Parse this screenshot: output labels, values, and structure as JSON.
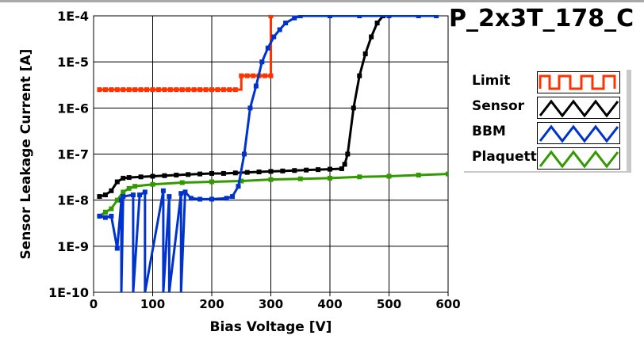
{
  "chart_data": {
    "type": "line",
    "title": "P_2x3T_178_C",
    "xlabel": "Bias Voltage [V]",
    "ylabel": "Sensor Leakage Current [A]",
    "xlim": [
      0,
      600
    ],
    "ylim": [
      1e-10,
      0.0001
    ],
    "yscale": "log",
    "grid": true,
    "legend_position": "right",
    "x_ticks": [
      "0",
      "100",
      "200",
      "300",
      "400",
      "500",
      "600"
    ],
    "y_ticks": [
      "1E-10",
      "1E-9",
      "1E-8",
      "1E-7",
      "1E-6",
      "1E-5",
      "1E-4"
    ],
    "series": [
      {
        "name": "Limit",
        "color": "#ff3300",
        "step": true,
        "x": [
          10,
          20,
          30,
          40,
          50,
          60,
          70,
          80,
          90,
          100,
          110,
          120,
          130,
          140,
          150,
          160,
          170,
          180,
          190,
          200,
          210,
          220,
          230,
          240,
          250,
          260,
          270,
          280,
          290,
          300,
          300
        ],
        "y": [
          2.5e-06,
          2.5e-06,
          2.5e-06,
          2.5e-06,
          2.5e-06,
          2.5e-06,
          2.5e-06,
          2.5e-06,
          2.5e-06,
          2.5e-06,
          2.5e-06,
          2.5e-06,
          2.5e-06,
          2.5e-06,
          2.5e-06,
          2.5e-06,
          2.5e-06,
          2.5e-06,
          2.5e-06,
          2.5e-06,
          2.5e-06,
          2.5e-06,
          2.5e-06,
          2.5e-06,
          5e-06,
          5e-06,
          5e-06,
          5e-06,
          5e-06,
          5e-06,
          0.0001
        ]
      },
      {
        "name": "Sensor",
        "color": "#000000",
        "x": [
          10,
          20,
          30,
          40,
          50,
          60,
          80,
          100,
          120,
          140,
          160,
          180,
          200,
          220,
          240,
          260,
          280,
          300,
          320,
          340,
          360,
          380,
          400,
          420,
          425,
          430,
          440,
          450,
          460,
          470,
          480,
          490
        ],
        "y": [
          1.2e-08,
          1.3e-08,
          1.6e-08,
          2.5e-08,
          3e-08,
          3.1e-08,
          3.2e-08,
          3.3e-08,
          3.4e-08,
          3.5e-08,
          3.6e-08,
          3.7e-08,
          3.8e-08,
          3.8e-08,
          3.9e-08,
          4e-08,
          4.1e-08,
          4.2e-08,
          4.3e-08,
          4.4e-08,
          4.5e-08,
          4.6e-08,
          4.7e-08,
          4.8e-08,
          6e-08,
          1e-07,
          1e-06,
          5e-06,
          1.5e-05,
          3.5e-05,
          7e-05,
          0.0001
        ]
      },
      {
        "name": "BBM",
        "color": "#0033cc",
        "x": [
          10,
          20,
          30,
          40,
          47,
          47,
          50,
          67,
          67,
          78,
          87,
          87,
          118,
          118,
          128,
          128,
          148,
          148,
          155,
          165,
          180,
          200,
          225,
          235,
          245,
          255,
          265,
          275,
          285,
          295,
          305,
          315,
          325,
          340,
          350,
          400,
          450,
          500,
          550,
          580
        ],
        "y": [
          4.5e-09,
          4.2e-09,
          4.5e-09,
          9e-10,
          1e-08,
          1e-10,
          1.2e-08,
          1.3e-08,
          1e-10,
          1.3e-08,
          1.5e-08,
          1e-10,
          1.6e-08,
          1e-10,
          1.2e-08,
          1e-10,
          1.4e-08,
          1e-10,
          1.5e-08,
          1.1e-08,
          1.05e-08,
          1.05e-08,
          1.1e-08,
          1.2e-08,
          2e-08,
          1e-07,
          1e-06,
          3e-06,
          1e-05,
          2e-05,
          3.5e-05,
          5e-05,
          7e-05,
          9e-05,
          0.0001,
          0.0001,
          0.0001,
          0.0001,
          0.0001,
          0.0001
        ]
      },
      {
        "name": "Plaquette",
        "color": "#339900",
        "x": [
          10,
          20,
          30,
          40,
          50,
          60,
          70,
          100,
          150,
          200,
          250,
          300,
          350,
          400,
          450,
          500,
          550,
          600
        ],
        "y": [
          4.5e-09,
          5.5e-09,
          6.5e-09,
          1e-08,
          1.5e-08,
          1.8e-08,
          2e-08,
          2.2e-08,
          2.4e-08,
          2.5e-08,
          2.6e-08,
          2.8e-08,
          2.9e-08,
          3e-08,
          3.2e-08,
          3.3e-08,
          3.5e-08,
          3.7e-08
        ]
      }
    ]
  }
}
